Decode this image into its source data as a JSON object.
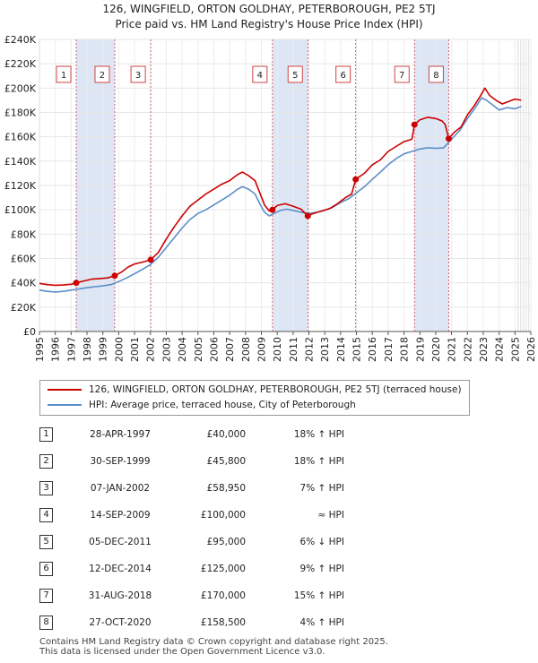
{
  "title": "126, WINGFIELD, ORTON GOLDHAY, PETERBOROUGH, PE2 5TJ",
  "subtitle": "Price paid vs. HM Land Registry's House Price Index (HPI)",
  "colors": {
    "property": "#cc0000",
    "hpi": "#5b8ec8",
    "band": "#dde6f5",
    "marker_line": "#d04040"
  },
  "chart_data": {
    "type": "line",
    "title": "126, WINGFIELD, ORTON GOLDHAY, PETERBOROUGH, PE2 5TJ",
    "xlim": [
      1995,
      2026
    ],
    "ylim": [
      0,
      240000
    ],
    "x_ticks": [
      "1995",
      "1996",
      "1997",
      "1998",
      "1999",
      "2000",
      "2001",
      "2002",
      "2003",
      "2004",
      "2005",
      "2006",
      "2007",
      "2008",
      "2009",
      "2010",
      "2011",
      "2012",
      "2013",
      "2014",
      "2015",
      "2016",
      "2017",
      "2018",
      "2019",
      "2020",
      "2021",
      "2022",
      "2023",
      "2024",
      "2025",
      "2026"
    ],
    "y_ticks": [
      {
        "value": 0,
        "label": "£0"
      },
      {
        "value": 20000,
        "label": "£20K"
      },
      {
        "value": 40000,
        "label": "£40K"
      },
      {
        "value": 60000,
        "label": "£60K"
      },
      {
        "value": 80000,
        "label": "£80K"
      },
      {
        "value": 100000,
        "label": "£100K"
      },
      {
        "value": 120000,
        "label": "£120K"
      },
      {
        "value": 140000,
        "label": "£140K"
      },
      {
        "value": 160000,
        "label": "£160K"
      },
      {
        "value": 180000,
        "label": "£180K"
      },
      {
        "value": 200000,
        "label": "£200K"
      },
      {
        "value": 220000,
        "label": "£220K"
      },
      {
        "value": 240000,
        "label": "£240K"
      }
    ],
    "shaded_bands": [
      [
        1997.32,
        1999.75
      ],
      [
        2009.7,
        2011.93
      ],
      [
        2018.66,
        2020.82
      ]
    ],
    "series": [
      {
        "name": "126, WINGFIELD, ORTON GOLDHAY, PETERBOROUGH, PE2 5TJ (terraced house)",
        "points": [
          [
            1995,
            39500
          ],
          [
            1995.5,
            38500
          ],
          [
            1996,
            38000
          ],
          [
            1996.5,
            38200
          ],
          [
            1997,
            38800
          ],
          [
            1997.32,
            40000
          ],
          [
            1997.8,
            41500
          ],
          [
            1998.3,
            43000
          ],
          [
            1998.8,
            43500
          ],
          [
            1999.3,
            44000
          ],
          [
            1999.75,
            45800
          ],
          [
            2000.2,
            49000
          ],
          [
            2000.6,
            53000
          ],
          [
            2001.0,
            55500
          ],
          [
            2001.5,
            57000
          ],
          [
            2002.02,
            58950
          ],
          [
            2002.5,
            65000
          ],
          [
            2003.0,
            76000
          ],
          [
            2003.5,
            86000
          ],
          [
            2004.0,
            95000
          ],
          [
            2004.5,
            103000
          ],
          [
            2005.0,
            108000
          ],
          [
            2005.5,
            113000
          ],
          [
            2006.0,
            117000
          ],
          [
            2006.5,
            121000
          ],
          [
            2007.0,
            124000
          ],
          [
            2007.5,
            129000
          ],
          [
            2007.8,
            131000
          ],
          [
            2008.2,
            128000
          ],
          [
            2008.6,
            124000
          ],
          [
            2008.9,
            114000
          ],
          [
            2009.2,
            104000
          ],
          [
            2009.5,
            99000
          ],
          [
            2009.7,
            100000
          ],
          [
            2010.0,
            103500
          ],
          [
            2010.5,
            105000
          ],
          [
            2011.0,
            103000
          ],
          [
            2011.5,
            100500
          ],
          [
            2011.93,
            95000
          ],
          [
            2012.3,
            97000
          ],
          [
            2012.8,
            99000
          ],
          [
            2013.3,
            101000
          ],
          [
            2013.8,
            105000
          ],
          [
            2014.3,
            110000
          ],
          [
            2014.7,
            113000
          ],
          [
            2014.95,
            125000
          ],
          [
            2015.5,
            130000
          ],
          [
            2016.0,
            137000
          ],
          [
            2016.5,
            141000
          ],
          [
            2017.0,
            148000
          ],
          [
            2017.5,
            152000
          ],
          [
            2018.0,
            156000
          ],
          [
            2018.5,
            158000
          ],
          [
            2018.66,
            170000
          ],
          [
            2019.0,
            174000
          ],
          [
            2019.5,
            176000
          ],
          [
            2020.0,
            175000
          ],
          [
            2020.4,
            173000
          ],
          [
            2020.6,
            170000
          ],
          [
            2020.82,
            158500
          ],
          [
            2021.2,
            164000
          ],
          [
            2021.6,
            168000
          ],
          [
            2022.0,
            178000
          ],
          [
            2022.4,
            185000
          ],
          [
            2022.8,
            193000
          ],
          [
            2023.1,
            200000
          ],
          [
            2023.4,
            194000
          ],
          [
            2023.8,
            190000
          ],
          [
            2024.2,
            187000
          ],
          [
            2024.6,
            189000
          ],
          [
            2025.0,
            191000
          ],
          [
            2025.4,
            190000
          ]
        ]
      },
      {
        "name": "HPI: Average price, terraced house, City of Peterborough",
        "points": [
          [
            1995,
            34000
          ],
          [
            1995.5,
            33000
          ],
          [
            1996,
            32500
          ],
          [
            1996.5,
            33000
          ],
          [
            1997,
            34000
          ],
          [
            1997.5,
            35000
          ],
          [
            1998,
            36000
          ],
          [
            1998.5,
            36800
          ],
          [
            1999,
            37500
          ],
          [
            1999.5,
            38500
          ],
          [
            2000,
            41000
          ],
          [
            2000.5,
            44000
          ],
          [
            2001,
            47500
          ],
          [
            2001.5,
            51000
          ],
          [
            2002,
            55000
          ],
          [
            2002.5,
            61000
          ],
          [
            2003,
            69000
          ],
          [
            2003.5,
            77000
          ],
          [
            2004,
            85000
          ],
          [
            2004.5,
            92000
          ],
          [
            2005,
            97000
          ],
          [
            2005.5,
            100000
          ],
          [
            2006,
            104000
          ],
          [
            2006.5,
            108000
          ],
          [
            2007,
            112000
          ],
          [
            2007.5,
            117000
          ],
          [
            2007.8,
            119000
          ],
          [
            2008.2,
            117000
          ],
          [
            2008.6,
            113000
          ],
          [
            2008.9,
            105000
          ],
          [
            2009.2,
            98000
          ],
          [
            2009.5,
            95000
          ],
          [
            2009.8,
            97000
          ],
          [
            2010.2,
            99500
          ],
          [
            2010.6,
            100500
          ],
          [
            2011.0,
            99500
          ],
          [
            2011.5,
            98000
          ],
          [
            2012.0,
            97000
          ],
          [
            2012.5,
            98000
          ],
          [
            2013.0,
            99500
          ],
          [
            2013.5,
            102000
          ],
          [
            2014.0,
            106000
          ],
          [
            2014.5,
            109000
          ],
          [
            2015.0,
            114000
          ],
          [
            2015.5,
            119000
          ],
          [
            2016.0,
            125000
          ],
          [
            2016.5,
            131000
          ],
          [
            2017.0,
            137000
          ],
          [
            2017.5,
            142000
          ],
          [
            2018.0,
            146000
          ],
          [
            2018.5,
            148000
          ],
          [
            2019.0,
            150000
          ],
          [
            2019.5,
            151000
          ],
          [
            2020.0,
            150500
          ],
          [
            2020.5,
            151000
          ],
          [
            2021.0,
            158000
          ],
          [
            2021.5,
            165000
          ],
          [
            2022.0,
            175000
          ],
          [
            2022.5,
            184000
          ],
          [
            2022.9,
            192000
          ],
          [
            2023.2,
            190000
          ],
          [
            2023.6,
            186000
          ],
          [
            2024.0,
            182000
          ],
          [
            2024.5,
            184000
          ],
          [
            2025.0,
            183000
          ],
          [
            2025.4,
            185000
          ]
        ]
      }
    ],
    "sales": [
      {
        "n": "1",
        "x": 1997.32,
        "price": 40000
      },
      {
        "n": "2",
        "x": 1999.75,
        "price": 45800
      },
      {
        "n": "3",
        "x": 2002.02,
        "price": 58950
      },
      {
        "n": "4",
        "x": 2009.7,
        "price": 100000
      },
      {
        "n": "5",
        "x": 2011.93,
        "price": 95000
      },
      {
        "n": "6",
        "x": 2014.95,
        "price": 125000
      },
      {
        "n": "7",
        "x": 2018.66,
        "price": 170000
      },
      {
        "n": "8",
        "x": 2020.82,
        "price": 158500
      }
    ]
  },
  "legend": {
    "property": "126, WINGFIELD, ORTON GOLDHAY, PETERBOROUGH, PE2 5TJ (terraced house)",
    "hpi": "HPI: Average price, terraced house, City of Peterborough"
  },
  "table": [
    {
      "num": "1",
      "date": "28-APR-1997",
      "price": "£40,000",
      "hpi": "18% ↑ HPI"
    },
    {
      "num": "2",
      "date": "30-SEP-1999",
      "price": "£45,800",
      "hpi": "18% ↑ HPI"
    },
    {
      "num": "3",
      "date": "07-JAN-2002",
      "price": "£58,950",
      "hpi": "7% ↑ HPI"
    },
    {
      "num": "4",
      "date": "14-SEP-2009",
      "price": "£100,000",
      "hpi": "≈ HPI"
    },
    {
      "num": "5",
      "date": "05-DEC-2011",
      "price": "£95,000",
      "hpi": "6% ↓ HPI"
    },
    {
      "num": "6",
      "date": "12-DEC-2014",
      "price": "£125,000",
      "hpi": "9% ↑ HPI"
    },
    {
      "num": "7",
      "date": "31-AUG-2018",
      "price": "£170,000",
      "hpi": "15% ↑ HPI"
    },
    {
      "num": "8",
      "date": "27-OCT-2020",
      "price": "£158,500",
      "hpi": "4% ↑ HPI"
    }
  ],
  "footer": {
    "line1": "Contains HM Land Registry data © Crown copyright and database right 2025.",
    "line2": "This data is licensed under the Open Government Licence v3.0."
  }
}
